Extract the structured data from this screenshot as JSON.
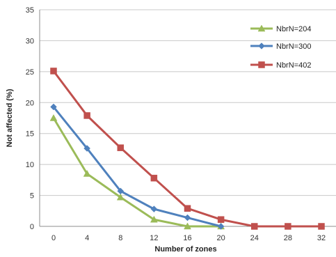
{
  "chart_data": {
    "type": "line",
    "xlabel": "Number of zones",
    "ylabel": "Not affected (%)",
    "x": [
      0,
      4,
      8,
      12,
      16,
      20,
      24,
      28,
      32
    ],
    "ylim": [
      0,
      35
    ],
    "yticks": [
      0,
      5,
      10,
      15,
      20,
      25,
      30,
      35
    ],
    "grid": "horizontal",
    "legend": "top-right",
    "series": [
      {
        "name": "NbrN=204",
        "color": "#9bbb59",
        "marker": "triangle",
        "x": [
          0,
          4,
          8,
          12,
          16,
          20
        ],
        "values": [
          17.5,
          8.5,
          4.7,
          1.1,
          0.0,
          0.0
        ]
      },
      {
        "name": "NbrN=300",
        "color": "#4f81bd",
        "marker": "diamond",
        "x": [
          0,
          4,
          8,
          12,
          16,
          20
        ],
        "values": [
          19.3,
          12.6,
          5.7,
          2.8,
          1.4,
          0.0
        ]
      },
      {
        "name": "NbrN=402",
        "color": "#c0504d",
        "marker": "square",
        "x": [
          0,
          4,
          8,
          12,
          16,
          20,
          24,
          28,
          32
        ],
        "values": [
          25.1,
          17.9,
          12.7,
          7.8,
          2.9,
          1.1,
          0.0,
          0.0,
          0.0
        ]
      }
    ]
  }
}
